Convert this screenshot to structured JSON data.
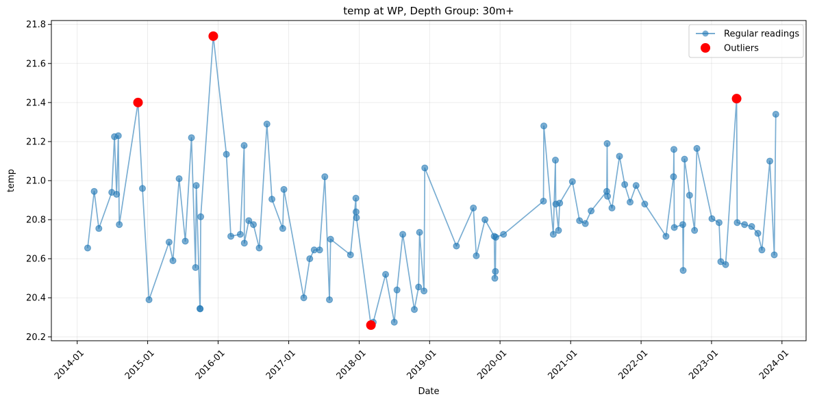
{
  "chart_data": {
    "type": "line",
    "title": "temp at WP, Depth Group: 30m+",
    "xlabel": "Date",
    "ylabel": "temp",
    "xlim": [
      "2013-08-20",
      "2024-05-05"
    ],
    "ylim": [
      20.18,
      21.82
    ],
    "x_tick_labels": [
      "2014-01",
      "2015-01",
      "2016-01",
      "2017-01",
      "2018-01",
      "2019-01",
      "2020-01",
      "2021-01",
      "2022-01",
      "2023-01",
      "2024-01"
    ],
    "y_tick_labels": [
      "20.2",
      "20.4",
      "20.6",
      "20.8",
      "21.0",
      "21.2",
      "21.4",
      "21.6",
      "21.8"
    ],
    "grid": true,
    "legend_position": "top-right",
    "colors": {
      "regular": "#1f77b4",
      "outlier": "#ff0000"
    },
    "series": [
      {
        "name": "Regular readings",
        "style": "line-with-markers",
        "points": [
          [
            "2014-02-24",
            20.655
          ],
          [
            "2014-03-30",
            20.945
          ],
          [
            "2014-04-23",
            20.755
          ],
          [
            "2014-06-29",
            20.94
          ],
          [
            "2014-07-13",
            21.225
          ],
          [
            "2014-07-24",
            20.93
          ],
          [
            "2014-08-02",
            21.23
          ],
          [
            "2014-08-07",
            20.775
          ],
          [
            "2014-11-12",
            21.4
          ],
          [
            "2014-12-05",
            20.96
          ],
          [
            "2015-01-08",
            20.39
          ],
          [
            "2015-04-22",
            20.685
          ],
          [
            "2015-05-12",
            20.59
          ],
          [
            "2015-06-13",
            21.01
          ],
          [
            "2015-07-15",
            20.69
          ],
          [
            "2015-08-16",
            21.22
          ],
          [
            "2015-09-06",
            20.555
          ],
          [
            "2015-09-10",
            20.975
          ],
          [
            "2015-09-29",
            20.345
          ],
          [
            "2015-09-30",
            20.343
          ],
          [
            "2015-10-03",
            20.815
          ],
          [
            "2015-12-07",
            21.74
          ],
          [
            "2016-02-13",
            21.135
          ],
          [
            "2016-03-07",
            20.715
          ],
          [
            "2016-04-25",
            20.725
          ],
          [
            "2016-05-15",
            21.18
          ],
          [
            "2016-05-16",
            20.68
          ],
          [
            "2016-06-08",
            20.795
          ],
          [
            "2016-07-02",
            20.775
          ],
          [
            "2016-08-01",
            20.655
          ],
          [
            "2016-09-10",
            21.29
          ],
          [
            "2016-10-06",
            20.905
          ],
          [
            "2016-12-01",
            20.755
          ],
          [
            "2016-12-07",
            20.955
          ],
          [
            "2017-03-20",
            20.4
          ],
          [
            "2017-04-20",
            20.6
          ],
          [
            "2017-05-13",
            20.645
          ],
          [
            "2017-06-10",
            20.645
          ],
          [
            "2017-07-07",
            21.02
          ],
          [
            "2017-07-31",
            20.39
          ],
          [
            "2017-08-06",
            20.7
          ],
          [
            "2017-11-17",
            20.62
          ],
          [
            "2017-12-15",
            20.91
          ],
          [
            "2017-12-16",
            20.84
          ],
          [
            "2017-12-18",
            20.81
          ],
          [
            "2018-03-03",
            20.26
          ],
          [
            "2018-03-15",
            20.275
          ],
          [
            "2018-05-18",
            20.52
          ],
          [
            "2018-07-02",
            20.275
          ],
          [
            "2018-07-16",
            20.44
          ],
          [
            "2018-08-15",
            20.725
          ],
          [
            "2018-10-14",
            20.34
          ],
          [
            "2018-11-05",
            20.455
          ],
          [
            "2018-11-10",
            20.735
          ],
          [
            "2018-12-03",
            20.435
          ],
          [
            "2018-12-07",
            21.065
          ],
          [
            "2019-05-20",
            20.665
          ],
          [
            "2019-08-16",
            20.86
          ],
          [
            "2019-08-31",
            20.615
          ],
          [
            "2019-10-15",
            20.8
          ],
          [
            "2019-12-02",
            20.715
          ],
          [
            "2019-12-05",
            20.5
          ],
          [
            "2019-12-08",
            20.535
          ],
          [
            "2019-12-10",
            20.71
          ],
          [
            "2020-01-19",
            20.725
          ],
          [
            "2020-08-13",
            20.895
          ],
          [
            "2020-08-15",
            21.28
          ],
          [
            "2020-10-03",
            20.725
          ],
          [
            "2020-10-14",
            21.105
          ],
          [
            "2020-10-16",
            20.88
          ],
          [
            "2020-10-30",
            20.745
          ],
          [
            "2020-11-05",
            20.885
          ],
          [
            "2021-01-10",
            20.995
          ],
          [
            "2021-02-16",
            20.795
          ],
          [
            "2021-03-18",
            20.78
          ],
          [
            "2021-04-17",
            20.845
          ],
          [
            "2021-07-07",
            20.945
          ],
          [
            "2021-07-09",
            21.19
          ],
          [
            "2021-07-11",
            20.92
          ],
          [
            "2021-08-03",
            20.86
          ],
          [
            "2021-09-11",
            21.125
          ],
          [
            "2021-10-08",
            20.98
          ],
          [
            "2021-11-05",
            20.89
          ],
          [
            "2021-12-06",
            20.975
          ],
          [
            "2022-01-20",
            20.88
          ],
          [
            "2022-05-10",
            20.715
          ],
          [
            "2022-06-18",
            21.02
          ],
          [
            "2022-06-20",
            21.16
          ],
          [
            "2022-06-22",
            20.76
          ],
          [
            "2022-08-05",
            20.775
          ],
          [
            "2022-08-07",
            20.54
          ],
          [
            "2022-08-14",
            21.11
          ],
          [
            "2022-09-09",
            20.925
          ],
          [
            "2022-10-05",
            20.745
          ],
          [
            "2022-10-17",
            21.165
          ],
          [
            "2023-01-03",
            20.805
          ],
          [
            "2023-02-09",
            20.785
          ],
          [
            "2023-02-18",
            20.585
          ],
          [
            "2023-03-15",
            20.57
          ],
          [
            "2023-05-11",
            21.42
          ],
          [
            "2023-05-14",
            20.785
          ],
          [
            "2023-06-21",
            20.775
          ],
          [
            "2023-07-28",
            20.765
          ],
          [
            "2023-08-29",
            20.73
          ],
          [
            "2023-09-19",
            20.645
          ],
          [
            "2023-10-30",
            21.1
          ],
          [
            "2023-11-22",
            20.62
          ],
          [
            "2023-11-30",
            21.34
          ]
        ]
      },
      {
        "name": "Outliers",
        "style": "markers-only",
        "points": [
          [
            "2014-11-12",
            21.4
          ],
          [
            "2015-12-07",
            21.74
          ],
          [
            "2018-03-03",
            20.26
          ],
          [
            "2023-05-11",
            21.42
          ]
        ]
      }
    ]
  }
}
